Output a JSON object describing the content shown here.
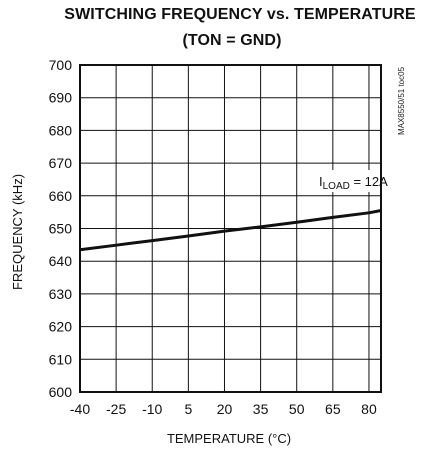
{
  "chart_data": {
    "type": "line",
    "title": "SWITCHING FREQUENCY vs. TEMPERATURE",
    "subtitle": "(TON = GND)",
    "xlabel": "TEMPERATURE (°C)",
    "ylabel": "FREQUENCY (kHz)",
    "xlim": [
      -40,
      85
    ],
    "ylim": [
      600,
      700
    ],
    "x_ticks": [
      -40,
      -25,
      -10,
      5,
      20,
      35,
      50,
      65,
      80
    ],
    "x_tick_labels": [
      "-40",
      "-25",
      "-10",
      "5",
      "20",
      "35",
      "50",
      "65",
      "80"
    ],
    "y_ticks": [
      600,
      610,
      620,
      630,
      640,
      650,
      660,
      670,
      680,
      690,
      700
    ],
    "y_tick_labels": [
      "600",
      "610",
      "620",
      "630",
      "640",
      "650",
      "660",
      "670",
      "680",
      "690",
      "700"
    ],
    "grid": true,
    "series": [
      {
        "name": "ILOAD = 12A",
        "x": [
          -40,
          -25,
          -10,
          5,
          20,
          35,
          50,
          65,
          80,
          85
        ],
        "y": [
          643.5,
          644.9,
          646.3,
          647.7,
          649.2,
          650.5,
          651.9,
          653.4,
          654.8,
          655.5
        ]
      }
    ],
    "annotation": {
      "prefix": "I",
      "subscript": "LOAD",
      "suffix": " = 12A"
    },
    "watermark": "MAX8550/51 toc05"
  },
  "colors": {
    "line": "#111111",
    "grid": "#111111",
    "background": "#ffffff"
  }
}
